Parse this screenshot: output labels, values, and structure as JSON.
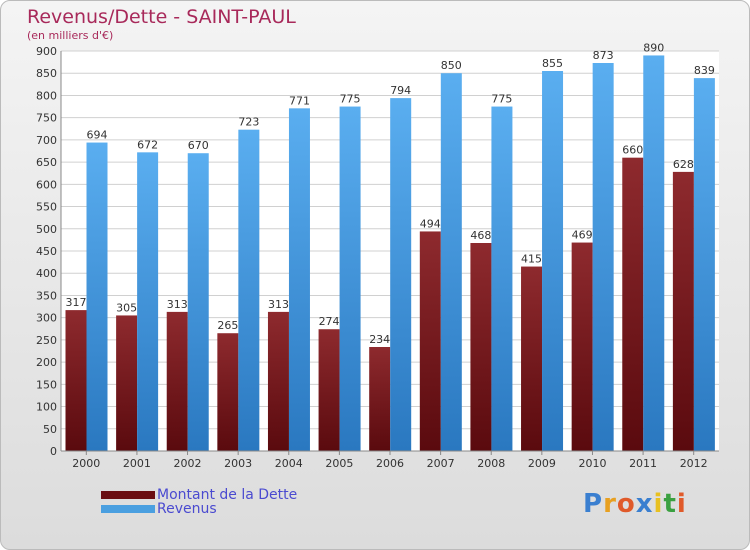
{
  "chart_data": {
    "type": "bar",
    "title": "Revenus/Dette - SAINT-PAUL",
    "subtitle": "(en milliers d'€)",
    "categories": [
      "2000",
      "2001",
      "2002",
      "2003",
      "2004",
      "2005",
      "2006",
      "2007",
      "2008",
      "2009",
      "2010",
      "2011",
      "2012"
    ],
    "series": [
      {
        "name": "Montant de la Dette",
        "color": "#7a1a1e",
        "values": [
          317,
          305,
          313,
          265,
          313,
          274,
          234,
          494,
          468,
          415,
          469,
          660,
          628
        ]
      },
      {
        "name": "Revenus",
        "color": "#4a9fe0",
        "values": [
          694,
          672,
          670,
          723,
          771,
          775,
          794,
          850,
          775,
          855,
          873,
          890,
          839
        ]
      }
    ],
    "ylim": [
      0,
      900
    ],
    "yticks": [
      0,
      50,
      100,
      150,
      200,
      250,
      300,
      350,
      400,
      450,
      500,
      550,
      600,
      650,
      700,
      750,
      800,
      850,
      900
    ],
    "grid": true,
    "legend_position": "bottom-left"
  },
  "logo": {
    "text": "Proxiti",
    "letters": [
      "P",
      "r",
      "o",
      "x",
      "i",
      "t",
      "i"
    ],
    "colors": [
      "#3a7fd0",
      "#e8a020",
      "#e05a2a",
      "#3a7fd0",
      "#e8c020",
      "#3aa040",
      "#e05a2a"
    ]
  }
}
